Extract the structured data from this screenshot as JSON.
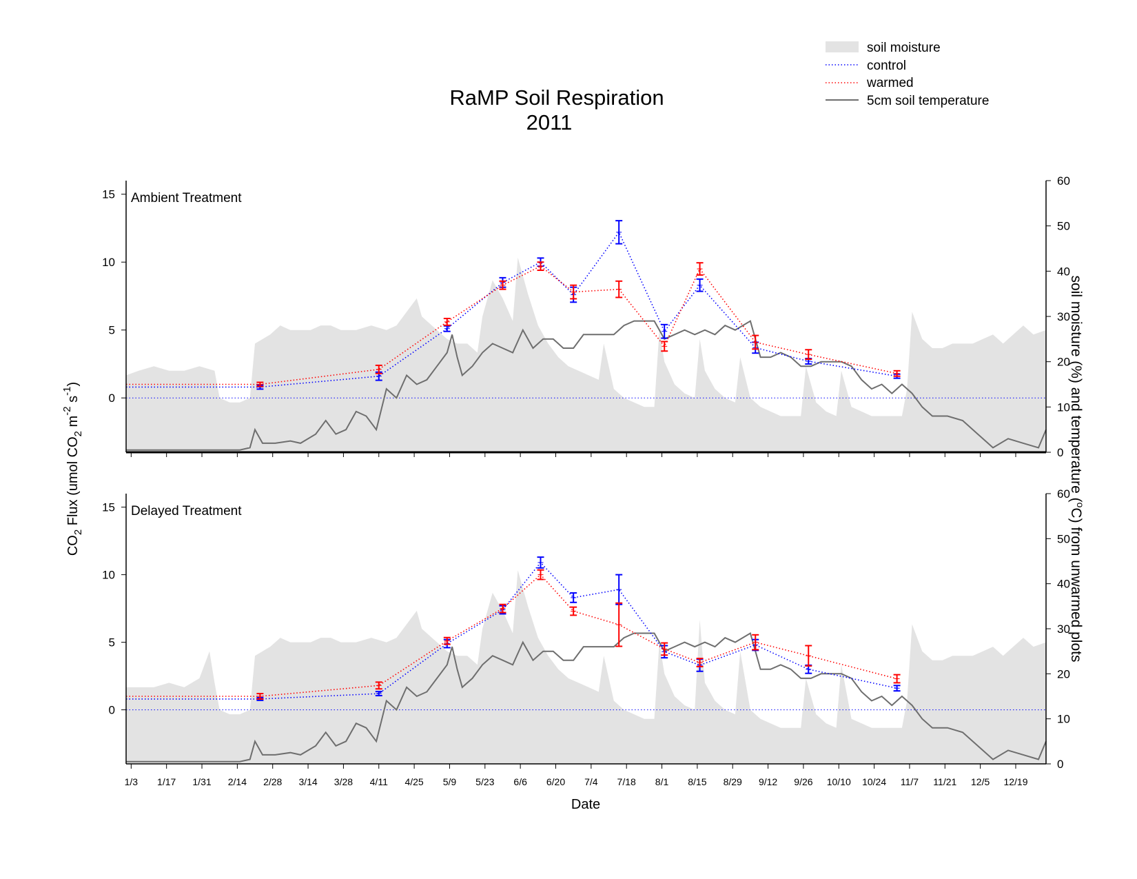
{
  "colors": {
    "moisture": "#e3e3e3",
    "control": "#0000ff",
    "warmed": "#ff0000",
    "temperature": "#6e6e6e",
    "axis": "#000000"
  },
  "figure": {
    "title_line1": "RaMP Soil Respiration",
    "title_line2": "2011",
    "xlabel": "Date",
    "ylabel_left": "CO2 Flux (umol CO2 m-2 s-1)",
    "ylabel_left_parts": [
      "CO",
      "2",
      " Flux (umol CO",
      "2",
      " m",
      "-2",
      " s",
      "-1",
      ")"
    ],
    "ylabel_right": "soil moisture (%) and temperature (°C) from unwarmed plots",
    "ylabel_right_parts": [
      "soil moisture (%) and temperature (",
      "o",
      "C) from unwarmed plots"
    ]
  },
  "legend": {
    "position": "top-right",
    "items": [
      {
        "key": "moisture",
        "label": "soil moisture"
      },
      {
        "key": "control",
        "label": "control"
      },
      {
        "key": "warmed",
        "label": "warmed"
      },
      {
        "key": "temperature",
        "label": "5cm soil temperature"
      }
    ]
  },
  "chart_data": [
    {
      "type": "line",
      "panel_label": "Ambient Treatment",
      "x_tick_labels": [
        "1/3",
        "1/17",
        "1/31",
        "2/14",
        "2/28",
        "3/14",
        "3/28",
        "4/11",
        "4/25",
        "5/9",
        "5/23",
        "6/6",
        "6/20",
        "7/4",
        "7/18",
        "8/1",
        "8/15",
        "8/29",
        "9/12",
        "9/26",
        "10/10",
        "10/24",
        "11/7",
        "11/21",
        "12/5",
        "12/19"
      ],
      "x_tick_days": [
        3,
        17,
        31,
        45,
        59,
        73,
        87,
        101,
        115,
        129,
        143,
        157,
        171,
        185,
        199,
        213,
        227,
        241,
        255,
        269,
        283,
        297,
        311,
        325,
        339,
        353
      ],
      "xlim_days": [
        1,
        365
      ],
      "ylim_left": [
        -4,
        16
      ],
      "yticks_left": [
        0,
        5,
        10,
        15
      ],
      "ylim_right": [
        0,
        60
      ],
      "yticks_right": [
        0,
        10,
        20,
        30,
        40,
        50,
        60
      ],
      "series": [
        {
          "name": "control",
          "axis": "left",
          "x_days": [
            54,
            101,
            128,
            150,
            165,
            178,
            196,
            214,
            228,
            250,
            271,
            306
          ],
          "y": [
            0.8,
            1.6,
            5.1,
            8.5,
            10.0,
            7.6,
            12.2,
            4.9,
            8.3,
            3.7,
            2.7,
            1.6
          ],
          "err": [
            0.15,
            0.3,
            0.2,
            0.35,
            0.3,
            0.55,
            0.85,
            0.5,
            0.45,
            0.4,
            0.2,
            0.15
          ]
        },
        {
          "name": "warmed",
          "axis": "left",
          "x_days": [
            54,
            101,
            128,
            150,
            165,
            178,
            196,
            214,
            228,
            250,
            271,
            306
          ],
          "y": [
            1.0,
            2.1,
            5.6,
            8.3,
            9.7,
            7.8,
            8.0,
            3.8,
            9.5,
            4.1,
            3.2,
            1.8
          ],
          "err": [
            0.15,
            0.3,
            0.25,
            0.3,
            0.3,
            0.5,
            0.6,
            0.35,
            0.45,
            0.5,
            0.35,
            0.2
          ]
        },
        {
          "name": "5cm soil temperature",
          "axis": "right",
          "x_days": [
            1,
            20,
            40,
            46,
            50,
            52,
            55,
            60,
            66,
            70,
            76,
            80,
            84,
            88,
            92,
            96,
            100,
            104,
            108,
            112,
            116,
            120,
            124,
            128,
            130,
            132,
            134,
            138,
            142,
            146,
            150,
            154,
            158,
            162,
            166,
            170,
            174,
            178,
            182,
            186,
            190,
            194,
            198,
            202,
            206,
            210,
            214,
            218,
            222,
            226,
            230,
            234,
            238,
            242,
            248,
            252,
            256,
            260,
            264,
            268,
            272,
            276,
            280,
            284,
            288,
            292,
            296,
            300,
            304,
            308,
            312,
            316,
            320,
            326,
            332,
            338,
            344,
            350,
            356,
            362,
            365
          ],
          "y": [
            0.5,
            0.5,
            0.5,
            0.5,
            1,
            5,
            2,
            2,
            2.5,
            2,
            4,
            7,
            4,
            5,
            9,
            8,
            5,
            14,
            12,
            17,
            15,
            16,
            19,
            22,
            26,
            21,
            17,
            19,
            22,
            24,
            23,
            22,
            27,
            23,
            25,
            25,
            23,
            23,
            26,
            26,
            26,
            26,
            28,
            29,
            29,
            29,
            25,
            26,
            27,
            26,
            27,
            26,
            28,
            27,
            29,
            21,
            21,
            22,
            21,
            19,
            19,
            20,
            20,
            20,
            19,
            16,
            14,
            15,
            13,
            15,
            13,
            10,
            8,
            8,
            7,
            4,
            1,
            3,
            2,
            1,
            5
          ]
        },
        {
          "name": "soil moisture",
          "axis": "right",
          "x_days": [
            1,
            6,
            12,
            18,
            24,
            30,
            36,
            38,
            42,
            46,
            50,
            52,
            58,
            62,
            66,
            70,
            74,
            78,
            82,
            86,
            92,
            98,
            104,
            108,
            112,
            116,
            118,
            120,
            124,
            128,
            132,
            136,
            140,
            142,
            146,
            150,
            154,
            156,
            160,
            164,
            168,
            172,
            176,
            180,
            184,
            188,
            190,
            194,
            198,
            202,
            206,
            210,
            212,
            214,
            218,
            222,
            226,
            228,
            230,
            234,
            238,
            242,
            244,
            248,
            252,
            256,
            260,
            264,
            268,
            270,
            274,
            278,
            282,
            284,
            288,
            292,
            296,
            300,
            304,
            308,
            310,
            312,
            316,
            320,
            324,
            328,
            332,
            336,
            340,
            344,
            348,
            352,
            356,
            360,
            365
          ],
          "y": [
            17,
            18,
            19,
            18,
            18,
            19,
            18,
            12,
            11,
            11,
            12,
            24,
            26,
            28,
            27,
            27,
            27,
            28,
            28,
            27,
            27,
            28,
            27,
            28,
            31,
            34,
            30,
            29,
            27,
            25,
            24,
            24,
            22,
            30,
            38,
            34,
            29,
            43,
            35,
            28,
            24,
            21,
            19,
            18,
            17,
            16,
            24,
            14,
            12,
            11,
            10,
            10,
            27,
            20,
            15,
            13,
            12,
            25,
            18,
            14,
            12,
            11,
            21,
            12,
            10,
            9,
            8,
            8,
            8,
            19,
            11,
            9,
            8,
            18,
            10,
            9,
            8,
            8,
            8,
            8,
            14,
            31,
            25,
            23,
            23,
            24,
            24,
            24,
            25,
            26,
            24,
            26,
            28,
            26,
            27
          ]
        }
      ]
    },
    {
      "type": "line",
      "panel_label": "Delayed Treatment",
      "x_tick_labels": [
        "1/3",
        "1/17",
        "1/31",
        "2/14",
        "2/28",
        "3/14",
        "3/28",
        "4/11",
        "4/25",
        "5/9",
        "5/23",
        "6/6",
        "6/20",
        "7/4",
        "7/18",
        "8/1",
        "8/15",
        "8/29",
        "9/12",
        "9/26",
        "10/10",
        "10/24",
        "11/7",
        "11/21",
        "12/5",
        "12/19"
      ],
      "x_tick_days": [
        3,
        17,
        31,
        45,
        59,
        73,
        87,
        101,
        115,
        129,
        143,
        157,
        171,
        185,
        199,
        213,
        227,
        241,
        255,
        269,
        283,
        297,
        311,
        325,
        339,
        353
      ],
      "xlim_days": [
        1,
        365
      ],
      "ylim_left": [
        -4,
        16
      ],
      "yticks_left": [
        0,
        5,
        10,
        15
      ],
      "ylim_right": [
        0,
        60
      ],
      "yticks_right": [
        0,
        10,
        20,
        30,
        40,
        50,
        60
      ],
      "series": [
        {
          "name": "control",
          "axis": "left",
          "x_days": [
            54,
            101,
            128,
            150,
            165,
            178,
            196,
            214,
            228,
            250,
            271,
            306
          ],
          "y": [
            0.8,
            1.2,
            4.9,
            7.4,
            10.9,
            8.3,
            8.9,
            4.3,
            3.3,
            4.8,
            3.0,
            1.6
          ],
          "err": [
            0.1,
            0.15,
            0.3,
            0.3,
            0.4,
            0.35,
            1.1,
            0.45,
            0.45,
            0.4,
            0.3,
            0.2
          ]
        },
        {
          "name": "warmed",
          "axis": "left",
          "x_days": [
            54,
            101,
            128,
            150,
            165,
            178,
            196,
            214,
            228,
            250,
            271,
            306
          ],
          "y": [
            1.0,
            1.8,
            5.1,
            7.5,
            10.0,
            7.3,
            6.3,
            4.5,
            3.5,
            5.0,
            4.0,
            2.3
          ],
          "err": [
            0.2,
            0.25,
            0.25,
            0.3,
            0.35,
            0.3,
            1.6,
            0.45,
            0.3,
            0.55,
            0.75,
            0.3
          ]
        },
        {
          "name": "5cm soil temperature",
          "axis": "right",
          "x_days": [
            1,
            20,
            40,
            46,
            50,
            52,
            55,
            60,
            66,
            70,
            76,
            80,
            84,
            88,
            92,
            96,
            100,
            104,
            108,
            112,
            116,
            120,
            124,
            128,
            130,
            132,
            134,
            138,
            142,
            146,
            150,
            154,
            158,
            162,
            166,
            170,
            174,
            178,
            182,
            186,
            190,
            194,
            198,
            202,
            206,
            210,
            214,
            218,
            222,
            226,
            230,
            234,
            238,
            242,
            248,
            252,
            256,
            260,
            264,
            268,
            272,
            276,
            280,
            284,
            288,
            292,
            296,
            300,
            304,
            308,
            312,
            316,
            320,
            326,
            332,
            338,
            344,
            350,
            356,
            362,
            365
          ],
          "y": [
            0.5,
            0.5,
            0.5,
            0.5,
            1,
            5,
            2,
            2,
            2.5,
            2,
            4,
            7,
            4,
            5,
            9,
            8,
            5,
            14,
            12,
            17,
            15,
            16,
            19,
            22,
            26,
            21,
            17,
            19,
            22,
            24,
            23,
            22,
            27,
            23,
            25,
            25,
            23,
            23,
            26,
            26,
            26,
            26,
            28,
            29,
            29,
            29,
            25,
            26,
            27,
            26,
            27,
            26,
            28,
            27,
            29,
            21,
            21,
            22,
            21,
            19,
            19,
            20,
            20,
            20,
            19,
            16,
            14,
            15,
            13,
            15,
            13,
            10,
            8,
            8,
            7,
            4,
            1,
            3,
            2,
            1,
            5
          ]
        },
        {
          "name": "soil moisture",
          "axis": "right",
          "x_days": [
            1,
            6,
            12,
            18,
            24,
            30,
            34,
            36,
            38,
            42,
            46,
            50,
            52,
            58,
            62,
            66,
            70,
            74,
            78,
            82,
            86,
            92,
            98,
            104,
            108,
            112,
            116,
            118,
            120,
            124,
            128,
            132,
            136,
            140,
            142,
            146,
            150,
            154,
            156,
            160,
            164,
            168,
            172,
            176,
            180,
            184,
            188,
            190,
            194,
            198,
            202,
            206,
            210,
            212,
            214,
            218,
            222,
            226,
            228,
            230,
            234,
            238,
            242,
            244,
            248,
            252,
            256,
            260,
            264,
            268,
            270,
            274,
            278,
            282,
            284,
            288,
            292,
            296,
            300,
            304,
            308,
            310,
            312,
            316,
            320,
            324,
            328,
            332,
            336,
            340,
            344,
            348,
            352,
            356,
            360,
            365
          ],
          "y": [
            17,
            17,
            17,
            18,
            17,
            19,
            25,
            18,
            12,
            11,
            11,
            12,
            24,
            26,
            28,
            27,
            27,
            27,
            28,
            28,
            27,
            27,
            28,
            27,
            28,
            31,
            34,
            30,
            29,
            27,
            25,
            24,
            24,
            22,
            30,
            38,
            34,
            29,
            43,
            35,
            28,
            24,
            21,
            19,
            18,
            17,
            16,
            24,
            14,
            12,
            11,
            10,
            10,
            27,
            20,
            15,
            13,
            12,
            32,
            18,
            14,
            12,
            11,
            25,
            12,
            10,
            9,
            8,
            8,
            8,
            19,
            11,
            9,
            8,
            22,
            10,
            9,
            8,
            8,
            8,
            8,
            14,
            31,
            25,
            23,
            23,
            24,
            24,
            24,
            25,
            26,
            24,
            26,
            28,
            26,
            27
          ]
        }
      ]
    }
  ]
}
